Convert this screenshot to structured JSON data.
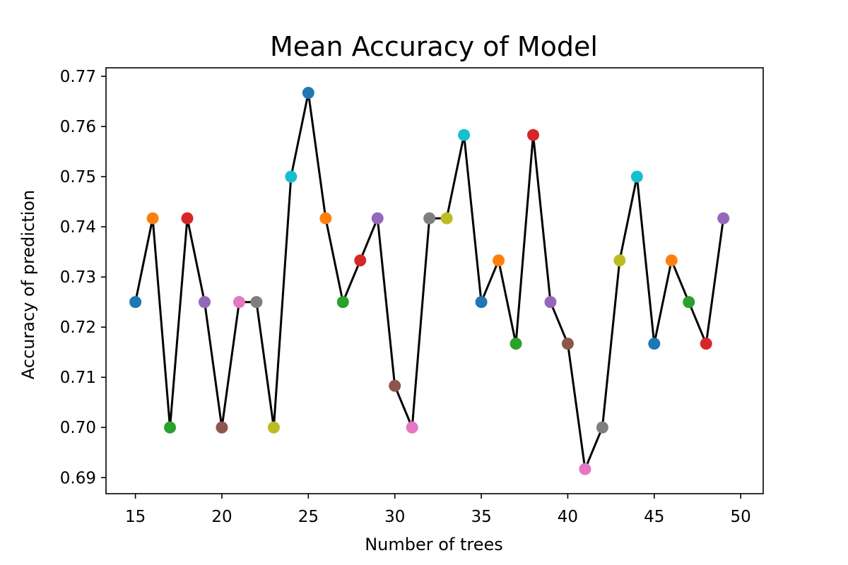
{
  "chart_data": {
    "type": "scatter",
    "title": "Mean Accuracy of Model",
    "xlabel": "Number of trees",
    "ylabel": "Accuracy of prediction",
    "xlim": [
      13.3,
      51.3
    ],
    "ylim": [
      0.6868,
      0.7717
    ],
    "xticks": [
      15,
      20,
      25,
      30,
      35,
      40,
      45,
      50
    ],
    "yticks": [
      0.69,
      0.7,
      0.71,
      0.72,
      0.73,
      0.74,
      0.75,
      0.76,
      0.77
    ],
    "ytick_labels": [
      "0.69",
      "0.70",
      "0.71",
      "0.72",
      "0.73",
      "0.74",
      "0.75",
      "0.76",
      "0.77"
    ],
    "grid": false,
    "legend": "none",
    "line_color": "#000000",
    "point_palette": [
      "#1f77b4",
      "#ff7f0e",
      "#2ca02c",
      "#d62728",
      "#9467bd",
      "#8c564b",
      "#e377c2",
      "#7f7f7f",
      "#bcbd22",
      "#17becf"
    ],
    "x": [
      15,
      16,
      17,
      18,
      19,
      20,
      21,
      22,
      23,
      24,
      25,
      26,
      27,
      28,
      29,
      30,
      31,
      32,
      33,
      34,
      35,
      36,
      37,
      38,
      39,
      40,
      41,
      42,
      43,
      44,
      45,
      46,
      47,
      48,
      49
    ],
    "y": [
      0.725,
      0.7417,
      0.7,
      0.7417,
      0.725,
      0.7,
      0.725,
      0.725,
      0.7,
      0.75,
      0.7667,
      0.7417,
      0.725,
      0.7333,
      0.7417,
      0.7083,
      0.7,
      0.7417,
      0.7417,
      0.7583,
      0.725,
      0.7333,
      0.7167,
      0.7583,
      0.725,
      0.7167,
      0.6917,
      0.7,
      0.7333,
      0.75,
      0.7167,
      0.7333,
      0.725,
      0.7167,
      0.7417
    ]
  }
}
